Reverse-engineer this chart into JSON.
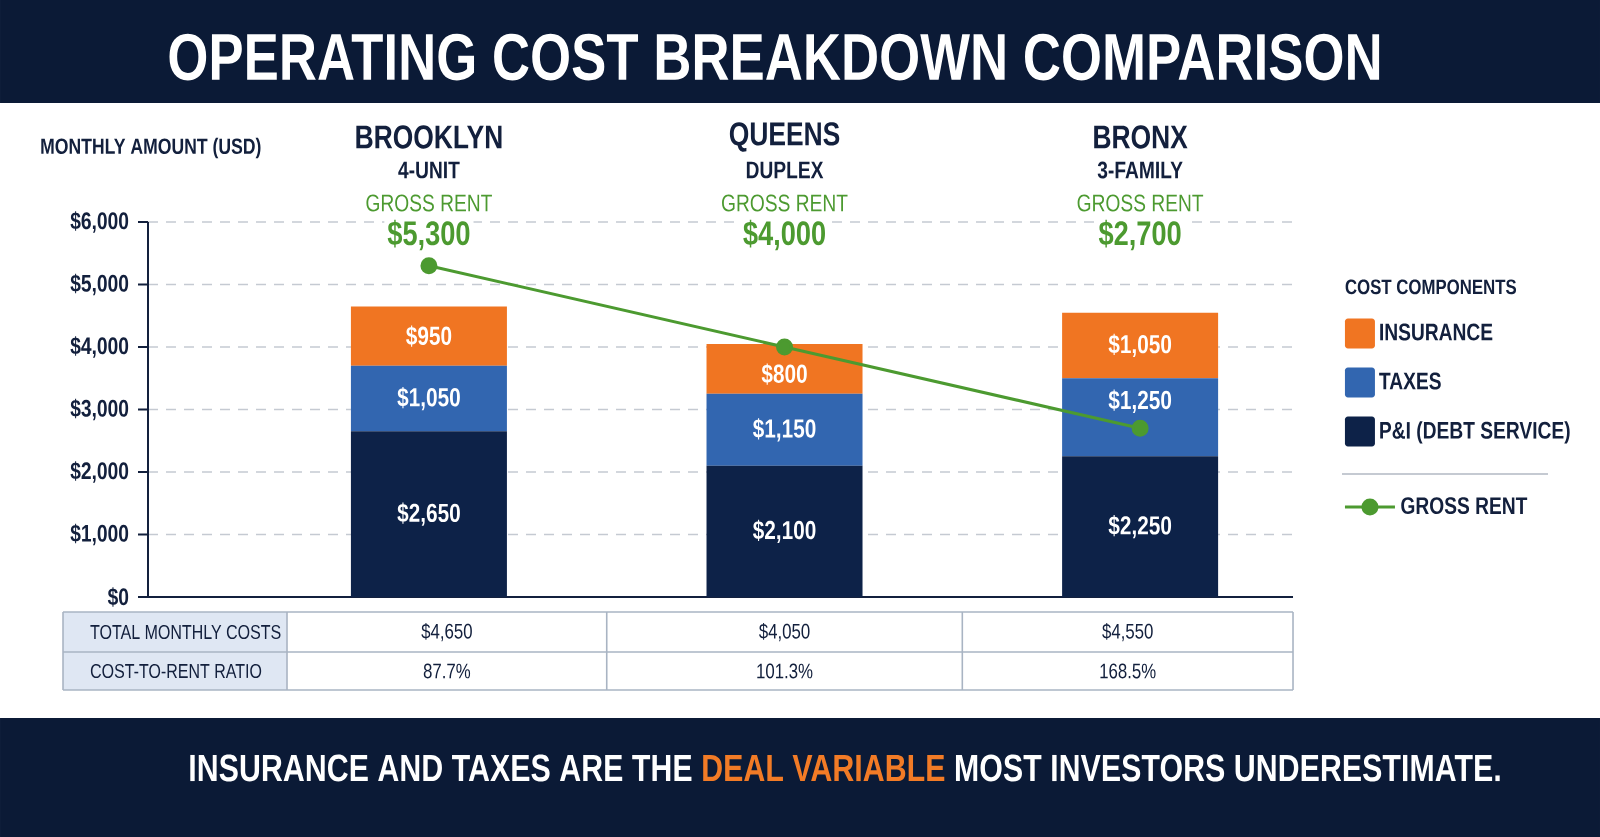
{
  "chart_data": {
    "type": "bar",
    "title": "OPERATING COST BREAKDOWN COMPARISON",
    "ylabel": "MONTHLY AMOUNT (USD)",
    "legend_title": "COST COMPONENTS",
    "categories": [
      "BROOKLYN",
      "QUEENS",
      "BRONX"
    ],
    "stacked": true,
    "series": [
      {
        "name": "P&I (DEBT SERVICE)",
        "color": "#0d2248",
        "values": [
          2650,
          2100,
          2250
        ],
        "value_labels": [
          "$2,650",
          "$2,100",
          "$2,250"
        ]
      },
      {
        "name": "TAXES",
        "color": "#3266b0",
        "values": [
          1050,
          1150,
          1250
        ],
        "value_labels": [
          "$1,050",
          "$1,150",
          "$1,250"
        ]
      },
      {
        "name": "INSURANCE",
        "color": "#f07522",
        "values": [
          950,
          800,
          1050
        ],
        "value_labels": [
          "$950",
          "$800",
          "$1,050"
        ]
      },
      {
        "name": "GROSS RENT",
        "type": "line",
        "color": "#4c9a30",
        "values": [
          5300,
          4000,
          2700
        ]
      }
    ],
    "ylim": [
      0,
      6000
    ],
    "yticks": [
      {
        "value": 0,
        "label": "$0"
      },
      {
        "value": 1000,
        "label": "$1,000"
      },
      {
        "value": 2000,
        "label": "$2,000"
      },
      {
        "value": 3000,
        "label": "$3,000"
      },
      {
        "value": 4000,
        "label": "$4,000"
      },
      {
        "value": 5000,
        "label": "$5,000"
      },
      {
        "value": 6000,
        "label": "$6,000"
      }
    ],
    "grid": "y",
    "legend": "right",
    "marker": "circle",
    "totals": [
      "$4,650",
      "$4,050",
      "$4,550"
    ],
    "annotations": [
      "4-UNIT",
      "DUPLEX",
      "3-FAMILY",
      "GROSS RENT",
      "GROSS RENT",
      "GROSS RENT",
      "$5,300",
      "$4,000",
      "$2,700",
      "TOTAL MONTHLY COSTS",
      "COST-TO-RENT RATIO",
      "87.7%",
      "101.3%",
      "168.5%",
      "INSURANCE AND TAXES ARE THE",
      "DEAL VARIABLE",
      "MOST INVESTORS UNDERESTIMATE."
    ]
  }
}
